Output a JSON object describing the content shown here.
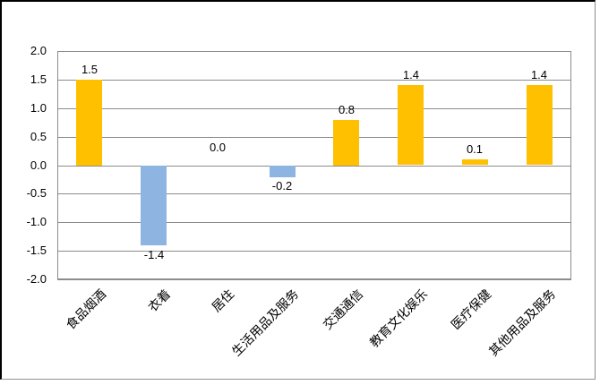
{
  "chart_data": {
    "type": "bar",
    "title": "",
    "xlabel": "",
    "ylabel": "",
    "categories": [
      "食品烟酒",
      "衣着",
      "居住",
      "生活用品及服务",
      "交通通信",
      "教育文化娱乐",
      "医疗保健",
      "其他用品及服务"
    ],
    "values": [
      1.5,
      -1.4,
      0.0,
      -0.2,
      0.8,
      1.4,
      0.1,
      1.4
    ],
    "data_labels": [
      "1.5",
      "-1.4",
      "0.0",
      "-0.2",
      "0.8",
      "1.4",
      "0.1",
      "1.4"
    ],
    "ylim": [
      -2.0,
      2.0
    ],
    "ytick_step": 0.5,
    "ytick_labels": [
      "2.0",
      "1.5",
      "1.0",
      "0.5",
      "0.0",
      "-0.5",
      "-1.0",
      "-1.5",
      "-2.0"
    ],
    "grid": true,
    "legend": false,
    "data_labels_shown": true,
    "colors": {
      "positive_bar": "#FFC000",
      "negative_bar": "#8EB4E2",
      "gridline": "#8C8C8C",
      "plot_border": "#8C8C8C",
      "label_text": "#000000",
      "background": "#FFFFFF",
      "frame_border_dark": "#000000",
      "frame_border_light": "#8C8C8C"
    }
  }
}
